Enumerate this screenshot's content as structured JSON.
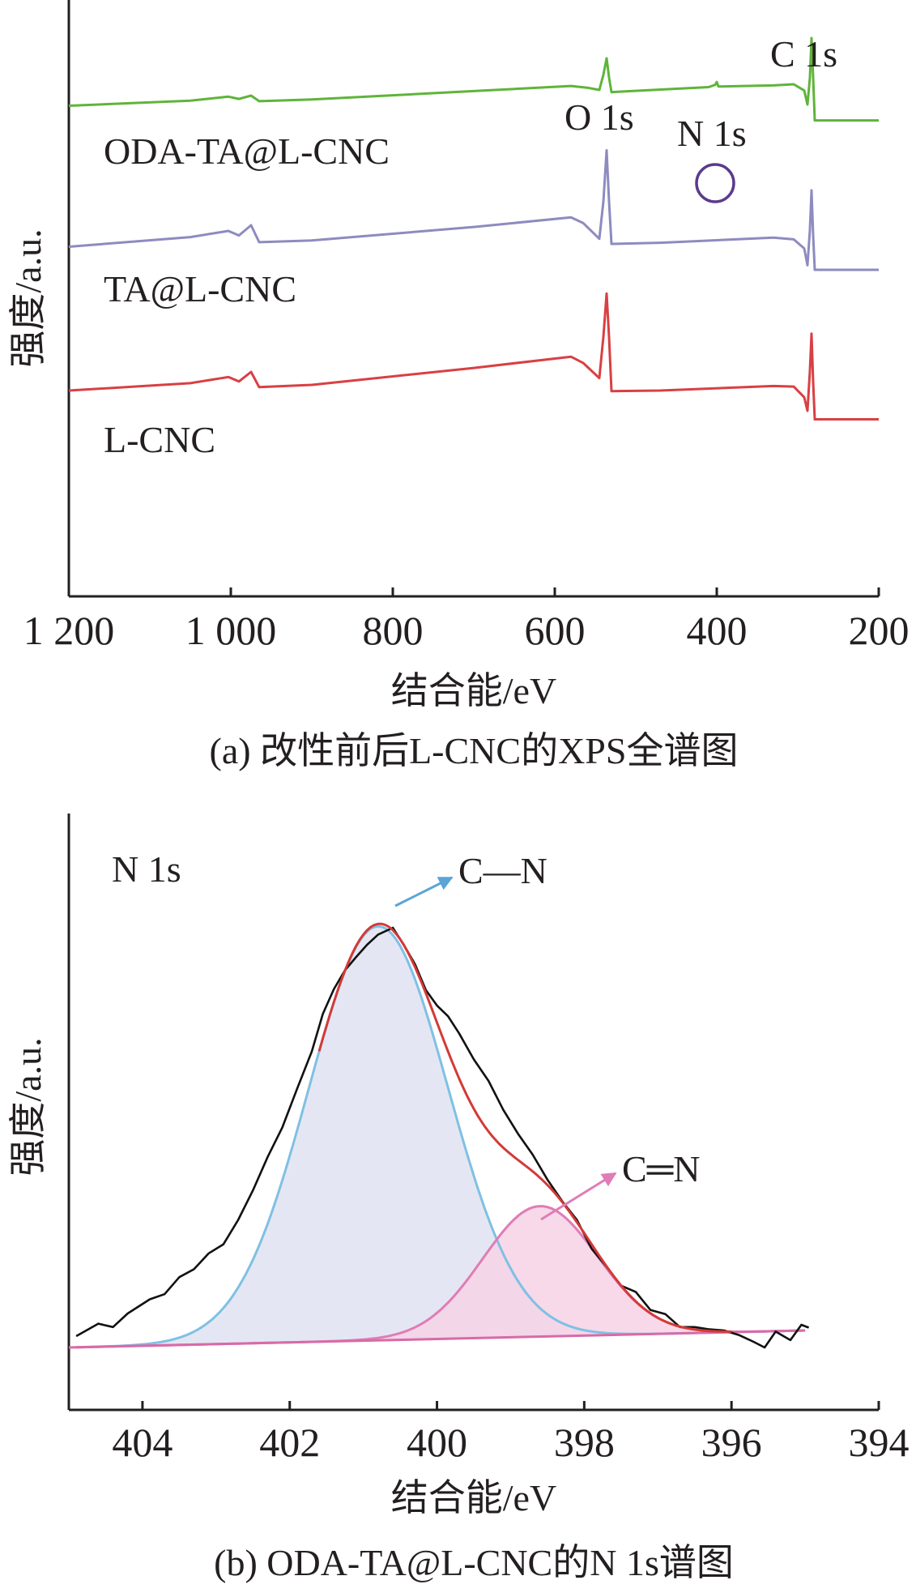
{
  "chart_data": [
    {
      "type": "line",
      "caption": "(a) 改性前后L-CNC的XPS全谱图",
      "xlabel": "结合能/eV",
      "ylabel": "强度/a.u.",
      "xlim": [
        1200,
        200
      ],
      "x_reversed": true,
      "x_ticks": [
        1200,
        1000,
        800,
        600,
        400,
        200
      ],
      "x_tick_labels": [
        "1 200",
        "1 000",
        "800",
        "600",
        "400",
        "200"
      ],
      "ylim": [
        0,
        100
      ],
      "grid": false,
      "series": [
        {
          "name": "ODA-TA@L-CNC",
          "color": "#5fb43a",
          "points": [
            [
              1200,
              87.0
            ],
            [
              1050,
              87.9
            ],
            [
              1003,
              88.6
            ],
            [
              990,
              88.2
            ],
            [
              975,
              88.8
            ],
            [
              965,
              87.8
            ],
            [
              900,
              88.1
            ],
            [
              700,
              89.6
            ],
            [
              580,
              90.5
            ],
            [
              560,
              90.2
            ],
            [
              545,
              89.8
            ],
            [
              540,
              92.5
            ],
            [
              536,
              95.4
            ],
            [
              533,
              92.0
            ],
            [
              530,
              89.4
            ],
            [
              520,
              89.5
            ],
            [
              410,
              90.3
            ],
            [
              402,
              90.7
            ],
            [
              400,
              91.2
            ],
            [
              398,
              90.4
            ],
            [
              330,
              90.6
            ],
            [
              305,
              90.8
            ],
            [
              292,
              89.7
            ],
            [
              288,
              87.2
            ],
            [
              285,
              92.0
            ],
            [
              283,
              99.0
            ],
            [
              281,
              92.0
            ],
            [
              279,
              84.4
            ],
            [
              200,
              84.4
            ]
          ]
        },
        {
          "name": "TA@L-CNC",
          "color": "#8d8bbf",
          "points": [
            [
              1200,
              62.0
            ],
            [
              1050,
              63.7
            ],
            [
              1003,
              64.8
            ],
            [
              990,
              64.0
            ],
            [
              975,
              65.8
            ],
            [
              965,
              62.8
            ],
            [
              900,
              63.1
            ],
            [
              700,
              65.5
            ],
            [
              580,
              67.2
            ],
            [
              565,
              66.2
            ],
            [
              545,
              63.4
            ],
            [
              540,
              70.0
            ],
            [
              536,
              79.1
            ],
            [
              533,
              70.0
            ],
            [
              530,
              62.5
            ],
            [
              470,
              62.7
            ],
            [
              330,
              63.6
            ],
            [
              305,
              63.3
            ],
            [
              292,
              61.7
            ],
            [
              288,
              58.7
            ],
            [
              285,
              65.0
            ],
            [
              283,
              72.0
            ],
            [
              281,
              64.0
            ],
            [
              279,
              57.9
            ],
            [
              200,
              57.9
            ]
          ]
        },
        {
          "name": "L-CNC",
          "color": "#d84043",
          "points": [
            [
              1200,
              36.5
            ],
            [
              1050,
              37.8
            ],
            [
              1003,
              38.9
            ],
            [
              990,
              38.1
            ],
            [
              975,
              39.8
            ],
            [
              965,
              37.1
            ],
            [
              900,
              37.5
            ],
            [
              700,
              40.5
            ],
            [
              580,
              42.5
            ],
            [
              565,
              41.4
            ],
            [
              545,
              38.7
            ],
            [
              540,
              46.0
            ],
            [
              536,
              53.7
            ],
            [
              533,
              46.0
            ],
            [
              530,
              36.4
            ],
            [
              470,
              36.5
            ],
            [
              330,
              37.3
            ],
            [
              305,
              37.2
            ],
            [
              292,
              35.3
            ],
            [
              288,
              32.9
            ],
            [
              285,
              40.0
            ],
            [
              283,
              46.6
            ],
            [
              281,
              38.0
            ],
            [
              279,
              31.4
            ],
            [
              200,
              31.4
            ]
          ]
        }
      ],
      "annotations": [
        {
          "text": "O 1s",
          "x": 537
        },
        {
          "text": "N 1s",
          "x": 400,
          "marker": "circle",
          "marker_color": "#5b3b8c"
        },
        {
          "text": "C 1s",
          "x": 285
        }
      ]
    },
    {
      "type": "line",
      "caption": "(b) ODA-TA@L-CNC的N 1s谱图",
      "panel_label": "N 1s",
      "xlabel": "结合能/eV",
      "ylabel": "强度/a.u.",
      "xlim": [
        405,
        394
      ],
      "x_reversed": true,
      "x_ticks": [
        404,
        402,
        400,
        398,
        396,
        394
      ],
      "x_tick_labels": [
        "404",
        "402",
        "400",
        "398",
        "396",
        "394"
      ],
      "ylim": [
        0,
        100
      ],
      "grid": false,
      "baseline": {
        "color": "#d86aa8",
        "x": [
          405,
          395
        ],
        "y": [
          11.0,
          14.0
        ]
      },
      "series": [
        {
          "name": "C—N",
          "color": "#7fc0e4",
          "fill": "#dfe3f1",
          "center": 400.8,
          "sigma": 0.95,
          "height": 73.0
        },
        {
          "name": "C═N",
          "color": "#e07cb6",
          "fill": "#f6d2e5",
          "center": 398.6,
          "sigma": 0.78,
          "height": 23.0
        },
        {
          "name": "fit",
          "color": "#d33a36"
        },
        {
          "name": "raw",
          "color": "#111111",
          "points": [
            [
              404.9,
              13.0
            ],
            [
              404.6,
              15.2
            ],
            [
              404.4,
              14.6
            ],
            [
              404.2,
              17.0
            ],
            [
              403.9,
              19.5
            ],
            [
              403.7,
              20.4
            ],
            [
              403.5,
              23.4
            ],
            [
              403.3,
              24.8
            ],
            [
              403.1,
              27.6
            ],
            [
              402.9,
              29.2
            ],
            [
              402.7,
              33.5
            ],
            [
              402.5,
              38.7
            ],
            [
              402.3,
              44.6
            ],
            [
              402.1,
              49.8
            ],
            [
              401.9,
              56.6
            ],
            [
              401.7,
              63.2
            ],
            [
              401.55,
              69.8
            ],
            [
              401.4,
              74.2
            ],
            [
              401.25,
              77.5
            ],
            [
              401.1,
              79.8
            ],
            [
              400.95,
              82.0
            ],
            [
              400.8,
              83.8
            ],
            [
              400.6,
              85.0
            ],
            [
              400.45,
              82.0
            ],
            [
              400.3,
              78.6
            ],
            [
              400.15,
              74.0
            ],
            [
              400.0,
              71.3
            ],
            [
              399.85,
              69.4
            ],
            [
              399.7,
              66.4
            ],
            [
              399.5,
              61.8
            ],
            [
              399.3,
              58.0
            ],
            [
              399.1,
              52.9
            ],
            [
              398.9,
              48.7
            ],
            [
              398.7,
              45.0
            ],
            [
              398.5,
              40.6
            ],
            [
              398.3,
              36.8
            ],
            [
              398.1,
              33.5
            ],
            [
              397.9,
              28.4
            ],
            [
              397.7,
              25.3
            ],
            [
              397.5,
              21.9
            ],
            [
              397.3,
              20.8
            ],
            [
              397.1,
              17.6
            ],
            [
              396.9,
              16.9
            ],
            [
              396.7,
              14.6
            ],
            [
              396.5,
              14.6
            ],
            [
              396.3,
              14.2
            ],
            [
              396.1,
              14.0
            ],
            [
              395.9,
              13.2
            ],
            [
              395.7,
              12.0
            ],
            [
              395.55,
              11.0
            ],
            [
              395.4,
              13.8
            ],
            [
              395.2,
              12.3
            ],
            [
              395.05,
              15.0
            ],
            [
              394.95,
              14.5
            ]
          ]
        }
      ],
      "annotations": [
        {
          "text": "C—N",
          "arrow_color": "#5aa4d6"
        },
        {
          "text": "C═N",
          "arrow_color": "#e07cb6"
        }
      ]
    }
  ]
}
